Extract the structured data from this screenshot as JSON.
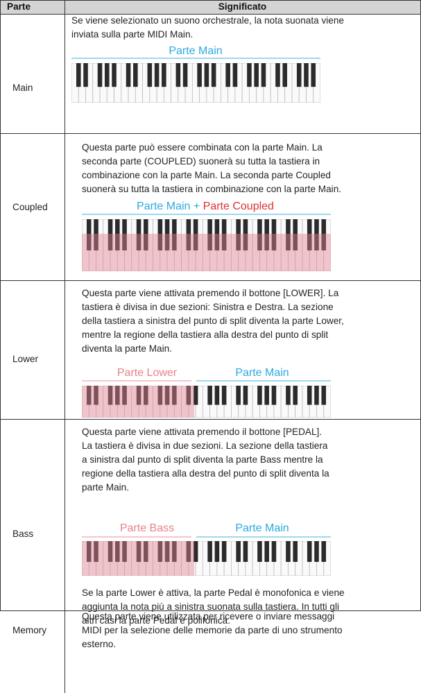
{
  "header": {
    "col1": "Parte",
    "col2": "Significato"
  },
  "rows": [
    {
      "part": "Main",
      "lines": [
        "Se viene selezionato un suono orchestrale, la nota suonata viene",
        "inviata sulla parte MIDI Main."
      ],
      "labels": [
        "Parte Main"
      ]
    },
    {
      "part": "Coupled",
      "lines": [
        "Questa parte può essere combinata con la parte Main. La",
        "seconda parte (COUPLED) suonerà su tutta la tastiera in",
        "combinazione con la parte Main. La seconda parte  Coupled",
        "suonerà su tutta la tastiera in combinazione con la parte Main."
      ],
      "labels": [
        "Parte Main + ",
        "Parte Coupled"
      ]
    },
    {
      "part": "Lower",
      "lines": [
        "Questa parte viene attivata premendo il bottone [LOWER]. La",
        "tastiera è divisa in due sezioni: Sinistra e Destra. La sezione",
        "della tastiera a sinistra del punto di split diventa la parte Lower,",
        "mentre la regione della tastiera alla destra del punto di split",
        "diventa la parte Main."
      ],
      "labels": [
        "Parte Lower",
        "Parte Main"
      ]
    },
    {
      "part": "Bass",
      "lines": [
        "Questa parte viene attivata premendo il bottone [PEDAL].",
        "La tastiera è divisa in due sezioni. La sezione della tastiera",
        "a sinistra dal punto di split diventa la parte Bass mentre la",
        "regione della tastiera alla destra del punto di split diventa la",
        "parte Main."
      ],
      "labels": [
        "Parte Bass",
        "Parte Main"
      ],
      "lines_after": [
        "Se la parte Lower è attiva, la parte Pedal è monofonica e viene",
        "aggiunta la nota più a sinistra suonata sulla tastiera. In tutti gli",
        "altri casi la parte Pedal è polifonica."
      ]
    },
    {
      "part": "Memory",
      "lines": [
        "Questa parte viene utilizzata per ricevere o inviare messaggi",
        "MIDI per la selezione delle memorie da parte di uno strumento",
        "esterno."
      ]
    }
  ]
}
